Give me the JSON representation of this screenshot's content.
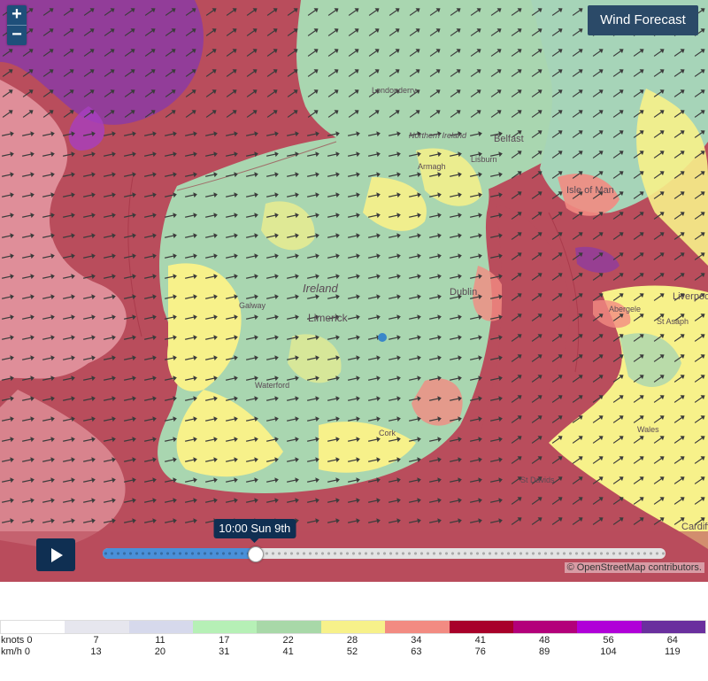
{
  "map": {
    "title_button": "Wind Forecast",
    "zoom_in": "+",
    "zoom_out": "−",
    "attribution": "© OpenStreetMap contributors.",
    "place_labels": [
      "Londonderry",
      "Northern Ireland",
      "Belfast",
      "Armagh",
      "Lisburn",
      "Isle of Man",
      "Ireland",
      "Galway",
      "Dublin",
      "Limerick",
      "Waterford",
      "Cork",
      "Liverpool",
      "St Asaph",
      "Abergele",
      "Wales",
      "Cardiff",
      "St Davids"
    ]
  },
  "timeline": {
    "current_time": "10:00 Sun 9th",
    "progress": 0.27
  },
  "legend": {
    "colors": [
      "#ffffff",
      "#e6e6ee",
      "#d6d9ec",
      "#b6f0b6",
      "#a8d8a8",
      "#f7f18a",
      "#f28b82",
      "#a8002a",
      "#b3007a",
      "#b000d8",
      "#6a2f9e"
    ],
    "knots_label": "knots",
    "kmh_label": "km/h",
    "knots_start": "0",
    "kmh_start": "0",
    "knots": [
      "7",
      "11",
      "17",
      "22",
      "28",
      "34",
      "41",
      "48",
      "56",
      "64"
    ],
    "kmh": [
      "13",
      "20",
      "31",
      "41",
      "52",
      "63",
      "76",
      "89",
      "104",
      "119"
    ]
  }
}
